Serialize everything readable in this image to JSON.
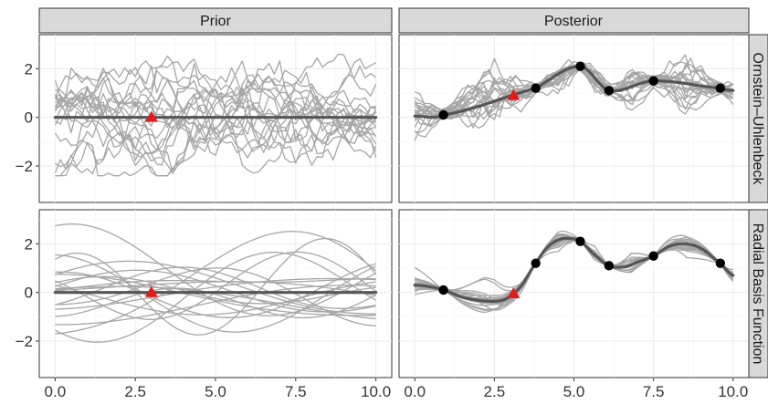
{
  "chart_data": {
    "type": "line",
    "layout": "2x2 facet grid",
    "facets": {
      "columns": [
        "Prior",
        "Posterior"
      ],
      "rows": [
        "Ornstein–Uhlenbeck",
        "Radial Basis Function"
      ]
    },
    "x_ticks": [
      "0.0",
      "2.5",
      "5.0",
      "7.5",
      "10.0"
    ],
    "y_ticks": [
      "−2",
      "0",
      "2"
    ],
    "xlim": [
      0,
      10
    ],
    "ylim": [
      -3.5,
      3.4
    ],
    "grid": true,
    "colors": {
      "samples": "#a6a6a6",
      "mean": "#555555",
      "observations": "#000000",
      "query": "#e31a1c",
      "strip": "#d9d9d9"
    },
    "observations": {
      "x": [
        0.9,
        3.8,
        5.2,
        6.1,
        7.5,
        9.6
      ],
      "y": [
        0.1,
        1.2,
        2.1,
        1.1,
        1.5,
        1.2
      ]
    },
    "query_point": {
      "prior": {
        "x": 3.0,
        "y": 0.0
      },
      "posterior": {
        "x": 3.1,
        "y": 0.9
      }
    },
    "posterior_mean_ou": {
      "x": [
        0.0,
        0.9,
        3.8,
        5.2,
        6.1,
        7.5,
        9.6,
        10.0
      ],
      "y": [
        0.05,
        0.1,
        1.2,
        2.1,
        1.1,
        1.5,
        1.2,
        1.1
      ]
    },
    "posterior_mean_rbf": {
      "x": [
        0.0,
        0.4,
        0.9,
        1.5,
        2.2,
        2.8,
        3.3,
        3.8,
        4.2,
        4.6,
        5.0,
        5.2,
        5.6,
        6.1,
        6.6,
        7.0,
        7.5,
        8.0,
        8.5,
        9.0,
        9.6,
        10.0
      ],
      "y": [
        0.3,
        0.25,
        0.1,
        -0.2,
        -0.35,
        -0.3,
        0.2,
        1.2,
        1.9,
        2.2,
        2.2,
        2.1,
        1.6,
        1.1,
        1.05,
        1.25,
        1.5,
        1.9,
        2.0,
        1.8,
        1.2,
        0.7
      ]
    },
    "prior_mean": {
      "x": [
        0,
        10
      ],
      "y": [
        0,
        0
      ]
    },
    "n_samples": 20
  }
}
